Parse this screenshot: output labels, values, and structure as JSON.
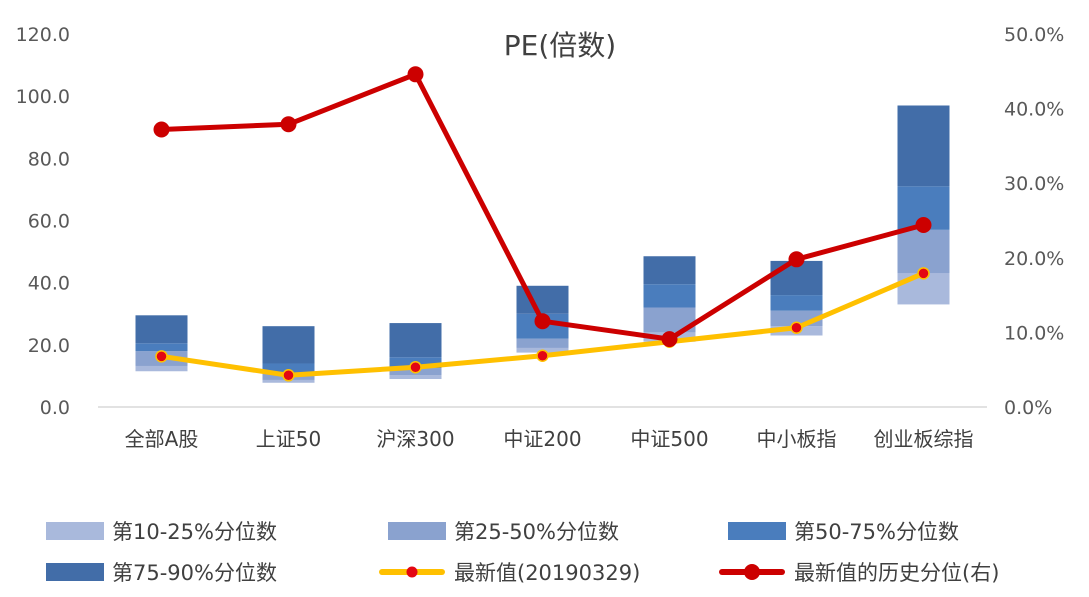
{
  "chart_data": {
    "type": "bar",
    "title": "PE(倍数)",
    "categories": [
      "全部A股",
      "上证50",
      "沪深300",
      "中证200",
      "中证500",
      "中小板指",
      "创业板综指"
    ],
    "y_left": {
      "min": 0,
      "max": 120,
      "ticks": [
        "0.0",
        "20.0",
        "40.0",
        "60.0",
        "80.0",
        "100.0",
        "120.0"
      ]
    },
    "y_right": {
      "min": 0,
      "max": 50,
      "ticks": [
        "0.0%",
        "10.0%",
        "20.0%",
        "30.0%",
        "40.0%",
        "50.0%"
      ]
    },
    "grid": false,
    "legend_position": "bottom",
    "percentile_bands": {
      "p10": [
        11.5,
        7.8,
        9.0,
        17.5,
        21.0,
        23.0,
        33.0
      ],
      "p25": [
        13.2,
        8.7,
        10.2,
        19.0,
        24.0,
        26.0,
        43.0
      ],
      "p50": [
        18.0,
        11.0,
        12.5,
        22.0,
        32.0,
        31.0,
        57.0
      ],
      "p75": [
        20.5,
        14.0,
        16.0,
        30.0,
        39.5,
        36.0,
        71.0
      ],
      "p90": [
        29.5,
        26.0,
        27.0,
        39.0,
        48.5,
        47.0,
        97.0
      ]
    },
    "series": [
      {
        "name": "第10-25%分位数",
        "kind": "bar-band",
        "color": "#a9b9dc"
      },
      {
        "name": "第25-50%分位数",
        "kind": "bar-band",
        "color": "#8aa2cf"
      },
      {
        "name": "第50-75%分位数",
        "kind": "bar-band",
        "color": "#4a7dbd"
      },
      {
        "name": "第75-90%分位数",
        "kind": "bar-band",
        "color": "#426da8"
      },
      {
        "name": "最新值(20190329)",
        "kind": "line",
        "axis": "left",
        "color": "#ffc000",
        "marker_color": "#e30613",
        "values": [
          16.3,
          10.2,
          12.8,
          16.5,
          21.0,
          25.5,
          43.0
        ]
      },
      {
        "name": "最新值的历史分位(右)",
        "kind": "line",
        "axis": "right",
        "color": "#cc0000",
        "marker_color": "#cc0000",
        "values": [
          37.2,
          37.9,
          44.6,
          11.5,
          9.1,
          19.8,
          24.4
        ]
      }
    ]
  }
}
